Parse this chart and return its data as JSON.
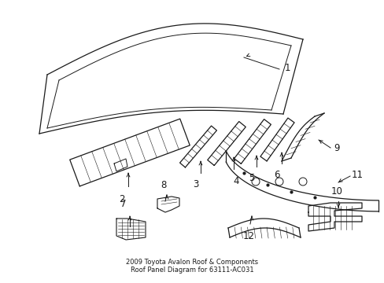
{
  "title": "2009 Toyota Avalon Roof & Components\nRoof Panel Diagram for 63111-AC031",
  "background_color": "#ffffff",
  "line_color": "#1a1a1a",
  "figsize": [
    4.89,
    3.6
  ],
  "dpi": 100
}
